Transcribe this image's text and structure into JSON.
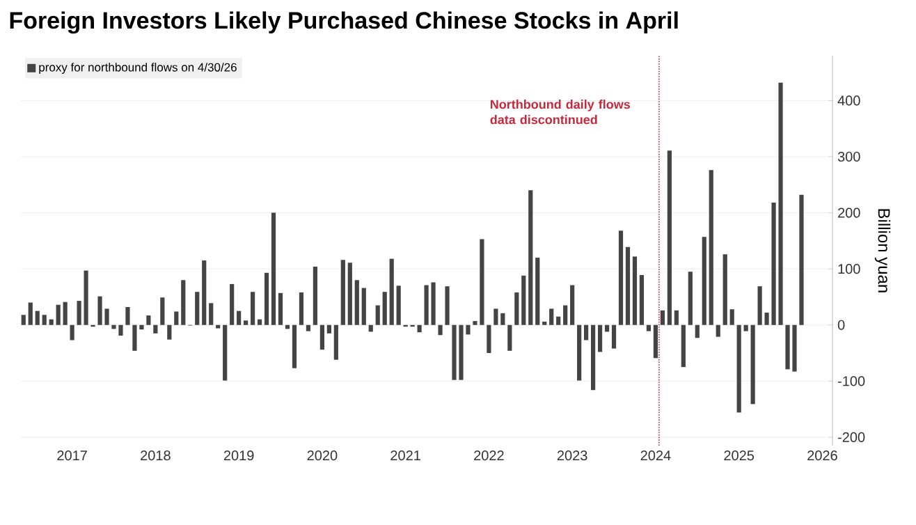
{
  "chart_data": {
    "type": "bar",
    "title": "Foreign Investors Likely Purchased Chinese Stocks in April",
    "ylabel": "Billion yuan",
    "x": [
      "2016-12",
      "2017-01",
      "2017-02",
      "2017-03",
      "2017-04",
      "2017-05",
      "2017-06",
      "2017-07",
      "2017-08",
      "2017-09",
      "2017-10",
      "2017-11",
      "2017-12",
      "2018-01",
      "2018-02",
      "2018-03",
      "2018-04",
      "2018-05",
      "2018-06",
      "2018-07",
      "2018-08",
      "2018-09",
      "2018-10",
      "2018-11",
      "2018-12",
      "2019-01",
      "2019-02",
      "2019-03",
      "2019-04",
      "2019-05",
      "2019-06",
      "2019-07",
      "2019-08",
      "2019-09",
      "2019-10",
      "2019-11",
      "2019-12",
      "2020-01",
      "2020-02",
      "2020-03",
      "2020-04",
      "2020-05",
      "2020-06",
      "2020-07",
      "2020-08",
      "2020-09",
      "2020-10",
      "2020-11",
      "2020-12",
      "2021-01",
      "2021-02",
      "2021-03",
      "2021-04",
      "2021-05",
      "2021-06",
      "2021-07",
      "2021-08",
      "2021-09",
      "2021-10",
      "2021-11",
      "2021-12",
      "2022-01",
      "2022-02",
      "2022-03",
      "2022-04",
      "2022-05",
      "2022-06",
      "2022-07",
      "2022-08",
      "2022-09",
      "2022-10",
      "2022-11",
      "2022-12",
      "2023-01",
      "2023-02",
      "2023-03",
      "2023-04",
      "2023-05",
      "2023-06",
      "2023-07",
      "2023-08",
      "2023-09",
      "2023-10",
      "2023-11",
      "2023-12",
      "2024-01",
      "2024-02",
      "2024-03",
      "2024-04",
      "2024-05",
      "2024-06",
      "2024-07",
      "2024-08",
      "2024-09",
      "2024-10",
      "2024-11",
      "2024-12",
      "2025-01",
      "2025-02",
      "2025-03",
      "2025-04",
      "2025-05",
      "2025-06",
      "2025-07",
      "2025-08",
      "2025-09",
      "2025-10",
      "2025-11",
      "2025-12",
      "2026-01",
      "2026-02",
      "2026-03",
      "2026-04"
    ],
    "series": [
      {
        "name": "proxy for northbound flows on 4/30/26",
        "color": "#444444",
        "values": [
          18,
          40,
          25,
          18,
          10,
          36,
          41,
          -27,
          43,
          97,
          -3,
          51,
          29,
          -7,
          -19,
          32,
          -46,
          -8,
          17,
          -15,
          49,
          -26,
          24,
          80,
          -1,
          59,
          115,
          39,
          -6,
          -99,
          73,
          25,
          8,
          59,
          10,
          93,
          200,
          57,
          -7,
          -77,
          58,
          -11,
          104,
          -44,
          -15,
          -62,
          116,
          111,
          80,
          66,
          -12,
          35,
          59,
          118,
          70,
          -3,
          -3,
          -13,
          71,
          76,
          -18,
          69,
          -98,
          -98,
          -17,
          7,
          153,
          -50,
          29,
          21,
          -46,
          58,
          88,
          240,
          120,
          6,
          29,
          15,
          35,
          71,
          -99,
          -27,
          -116,
          -48,
          -12,
          -42,
          168,
          139,
          122,
          89,
          -11,
          -59,
          26,
          311,
          26,
          -75,
          95,
          -23,
          157,
          276,
          -21,
          126,
          28,
          -156,
          -11,
          -141,
          69,
          22,
          218,
          432,
          -79,
          -83,
          232
        ]
      }
    ],
    "xlim": [
      "2016-11-20",
      "2026-08-15"
    ],
    "xticks": [
      {
        "value": "2017-07",
        "label": "2017"
      },
      {
        "value": "2018-07",
        "label": "2018"
      },
      {
        "value": "2019-07",
        "label": "2019"
      },
      {
        "value": "2020-07",
        "label": "2020"
      },
      {
        "value": "2021-07",
        "label": "2021"
      },
      {
        "value": "2022-07",
        "label": "2022"
      },
      {
        "value": "2023-07",
        "label": "2023"
      },
      {
        "value": "2024-07",
        "label": "2024"
      },
      {
        "value": "2025-07",
        "label": "2025"
      },
      {
        "value": "2026-07",
        "label": "2026"
      }
    ],
    "ylim": [
      -215,
      480
    ],
    "yticks": [
      -200,
      -100,
      0,
      100,
      200,
      300,
      400
    ],
    "grid": "y",
    "legend": "top left",
    "ref_lines": [
      {
        "axis": "x",
        "value": "2024-07-16",
        "label": "Northbound daily flows data discontinued",
        "color": "#c8283c",
        "line_style": "dotted"
      }
    ]
  }
}
